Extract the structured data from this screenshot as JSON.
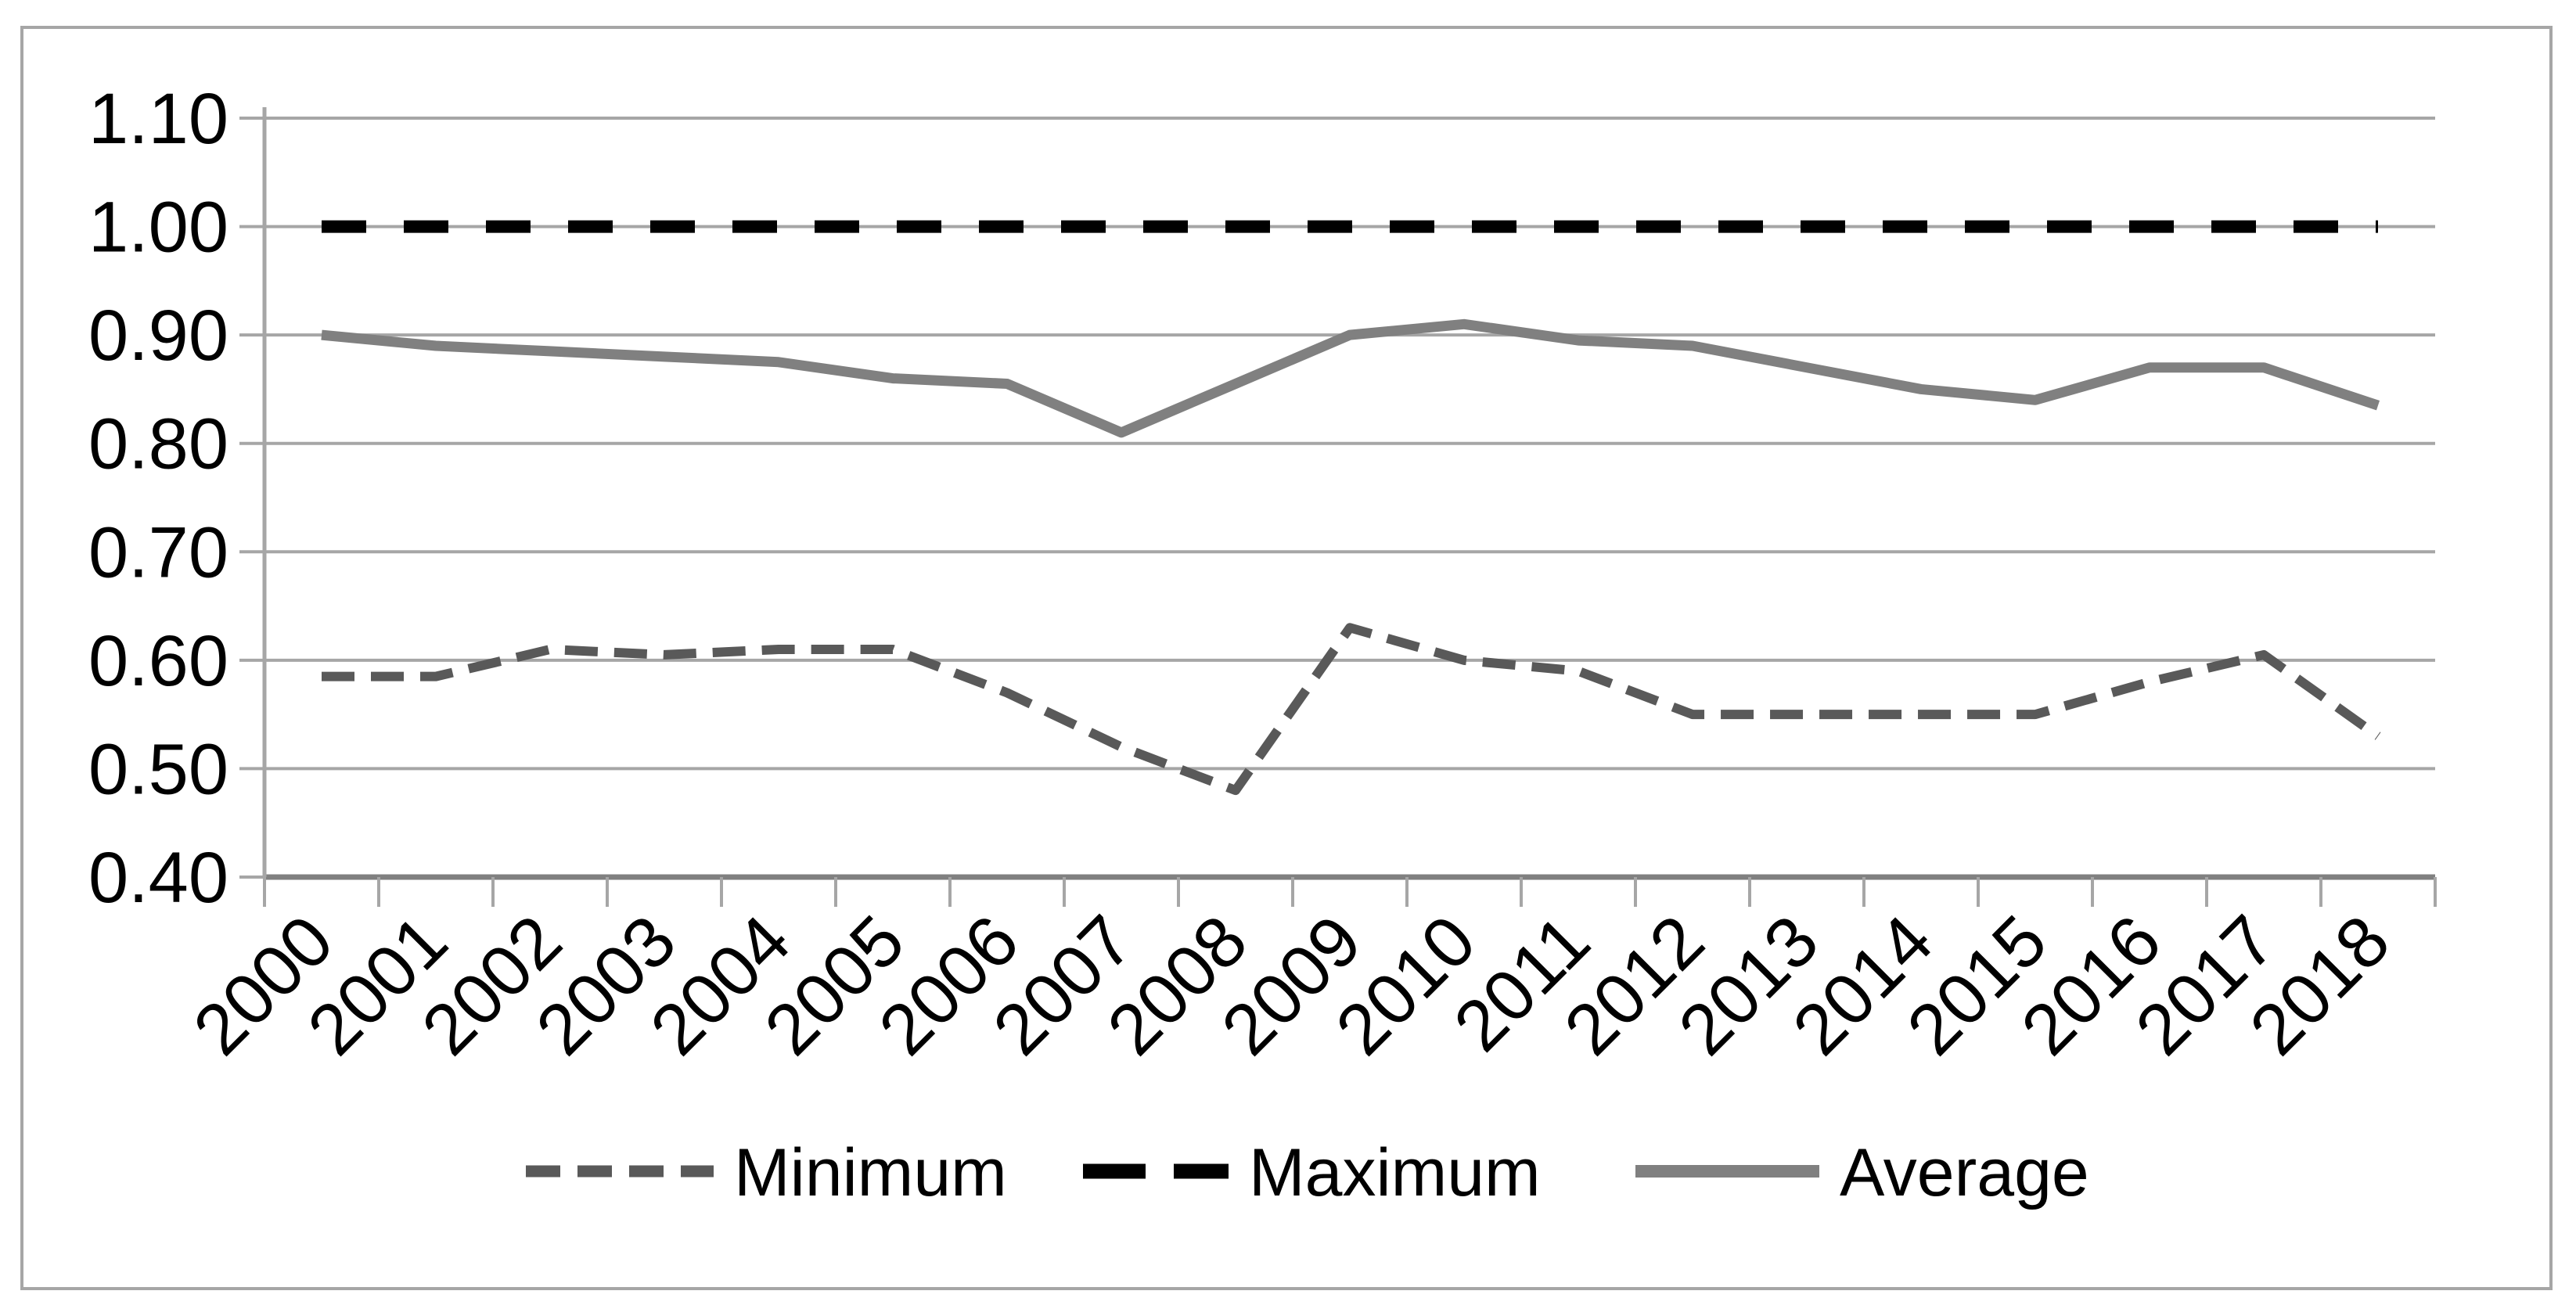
{
  "figure": {
    "background": "#ffffff",
    "border_color": "#a6a6a6"
  },
  "chart_data": {
    "type": "line",
    "title": "",
    "xlabel": "",
    "ylabel": "",
    "x": [
      2000,
      2001,
      2002,
      2003,
      2004,
      2005,
      2006,
      2007,
      2008,
      2009,
      2010,
      2011,
      2012,
      2013,
      2014,
      2015,
      2016,
      2017,
      2018
    ],
    "series": [
      {
        "name": "Minimum",
        "color": "#595959",
        "line_style": "short-dash",
        "values": [
          0.585,
          0.585,
          0.61,
          0.605,
          0.61,
          0.61,
          0.57,
          0.52,
          0.48,
          0.63,
          0.6,
          0.59,
          0.55,
          0.55,
          0.55,
          0.55,
          0.58,
          0.605,
          0.53
        ]
      },
      {
        "name": "Maximum",
        "color": "#000000",
        "line_style": "long-dash",
        "values": [
          1.0,
          1.0,
          1.0,
          1.0,
          1.0,
          1.0,
          1.0,
          1.0,
          1.0,
          1.0,
          1.0,
          1.0,
          1.0,
          1.0,
          1.0,
          1.0,
          1.0,
          1.0,
          1.0
        ]
      },
      {
        "name": "Average",
        "color": "#808080",
        "line_style": "solid",
        "values": [
          0.9,
          0.89,
          0.885,
          0.88,
          0.875,
          0.86,
          0.855,
          0.81,
          0.855,
          0.9,
          0.91,
          0.895,
          0.89,
          0.87,
          0.85,
          0.84,
          0.87,
          0.87,
          0.835
        ]
      }
    ],
    "ylim": [
      0.4,
      1.1
    ],
    "ytick_step": 0.1,
    "ytick_labels": [
      "1.10",
      "1.00",
      "0.90",
      "0.80",
      "0.70",
      "0.60",
      "0.50",
      "0.40"
    ],
    "grid": true,
    "gridline_color": "#a6a6a6",
    "axis_color": "#808080",
    "text_color": "#000000",
    "legend_position": "bottom",
    "legend_labels": [
      "Minimum",
      "Maximum",
      "Average"
    ]
  }
}
